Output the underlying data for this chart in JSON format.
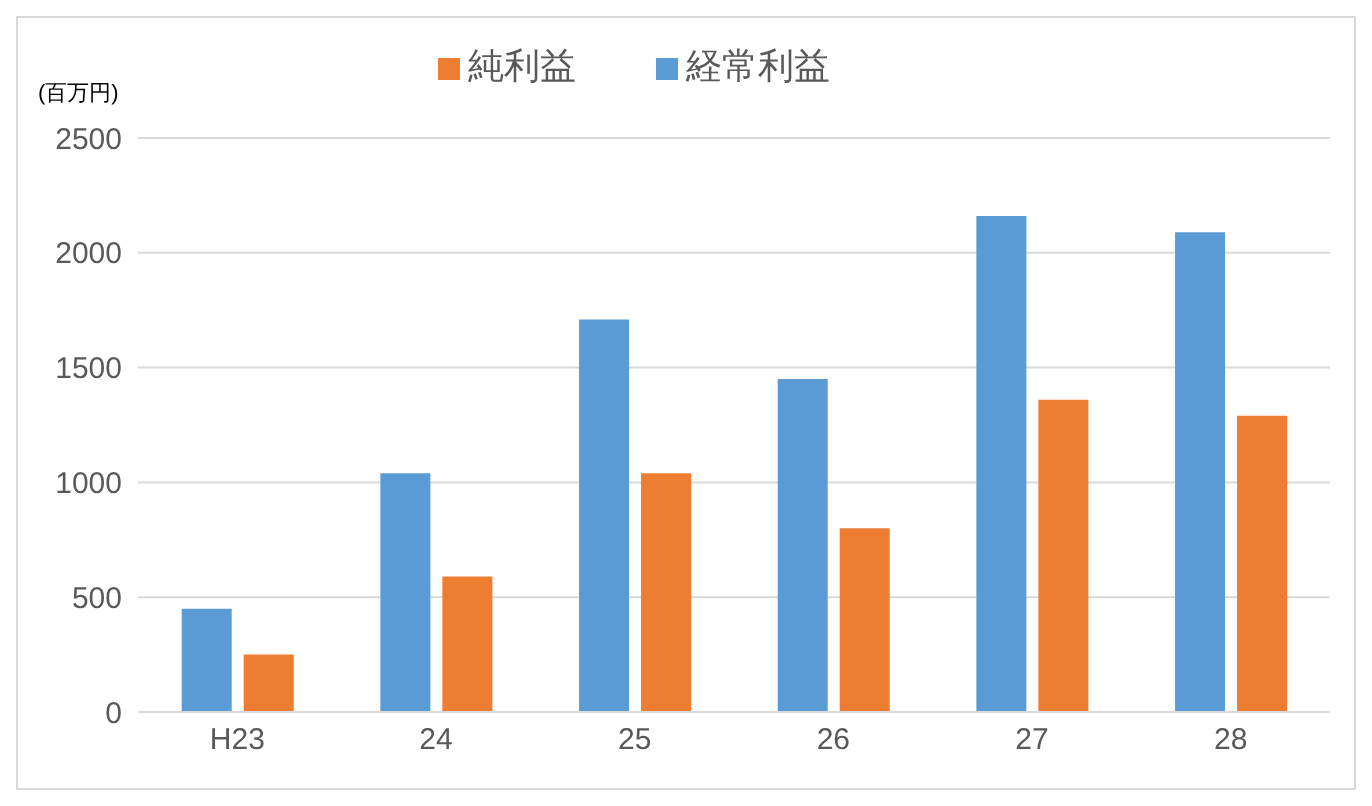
{
  "chart_data": {
    "type": "bar",
    "ylabel": "(百万円)",
    "categories": [
      "H23",
      "24",
      "25",
      "26",
      "27",
      "28"
    ],
    "series": [
      {
        "name": "経常利益",
        "color": "#5b9bd5",
        "values": [
          450,
          1040,
          1710,
          1450,
          2160,
          2090
        ]
      },
      {
        "name": "純利益",
        "color": "#ed7d31",
        "values": [
          250,
          590,
          1040,
          800,
          1360,
          1290
        ]
      }
    ],
    "ylim": [
      0,
      2500
    ],
    "yticks": [
      0,
      500,
      1000,
      1500,
      2000,
      2500
    ],
    "grid": "y",
    "legend": "top"
  }
}
